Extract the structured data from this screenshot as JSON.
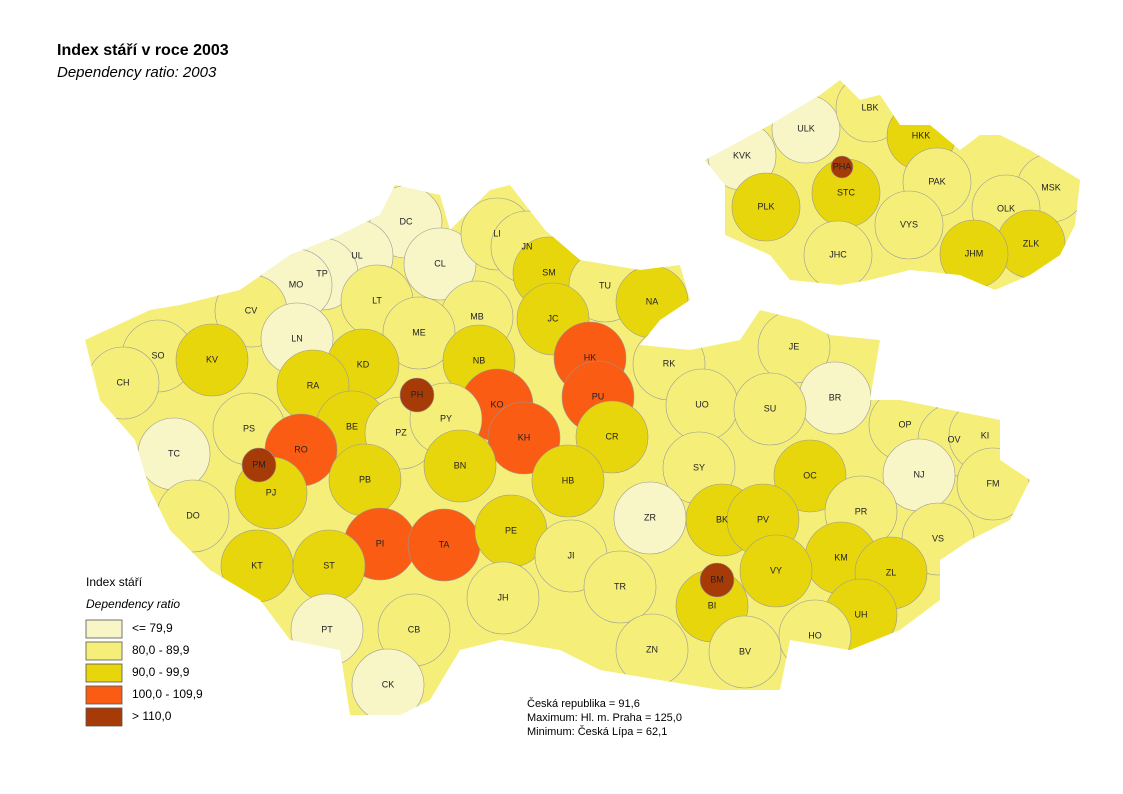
{
  "header": {
    "title": "Index stáří v roce 2003",
    "subtitle": "Dependency ratio: 2003"
  },
  "legend": {
    "title": "Index stáří",
    "subtitle": "Dependency ratio",
    "items": [
      {
        "label": "<= 79,9",
        "color": "#f8f5c6"
      },
      {
        "label": "80,0 - 89,9",
        "color": "#f5ef7a"
      },
      {
        "label": "90,0 - 99,9",
        "color": "#e8d60c"
      },
      {
        "label": "100,0 - 109,9",
        "color": "#f95c12"
      },
      {
        "label": "> 110,0",
        "color": "#a63b08"
      }
    ]
  },
  "districts": [
    {
      "label": "DC",
      "color": "#f8f5c6"
    },
    {
      "label": "UL",
      "color": "#f8f5c6"
    },
    {
      "label": "CL",
      "color": "#f8f5c6"
    },
    {
      "label": "LI",
      "color": "#f5ef7a"
    },
    {
      "label": "JN",
      "color": "#f5ef7a"
    },
    {
      "label": "SM",
      "color": "#e8d60c"
    },
    {
      "label": "TU",
      "color": "#f5ef7a"
    },
    {
      "label": "NA",
      "color": "#e8d60c"
    },
    {
      "label": "TP",
      "color": "#f8f5c6"
    },
    {
      "label": "MO",
      "color": "#f8f5c6"
    },
    {
      "label": "CV",
      "color": "#f5ef7a"
    },
    {
      "label": "LT",
      "color": "#f5ef7a"
    },
    {
      "label": "MB",
      "color": "#f5ef7a"
    },
    {
      "label": "JC",
      "color": "#e8d60c"
    },
    {
      "label": "SO",
      "color": "#f5ef7a"
    },
    {
      "label": "KV",
      "color": "#e8d60c"
    },
    {
      "label": "LN",
      "color": "#f8f5c6"
    },
    {
      "label": "ME",
      "color": "#f5ef7a"
    },
    {
      "label": "KD",
      "color": "#e8d60c"
    },
    {
      "label": "NB",
      "color": "#e8d60c"
    },
    {
      "label": "HK",
      "color": "#f95c12"
    },
    {
      "label": "RK",
      "color": "#f5ef7a"
    },
    {
      "label": "JE",
      "color": "#f5ef7a"
    },
    {
      "label": "CH",
      "color": "#f5ef7a"
    },
    {
      "label": "RA",
      "color": "#e8d60c"
    },
    {
      "label": "PH",
      "color": "#a63b08"
    },
    {
      "label": "KO",
      "color": "#f95c12"
    },
    {
      "label": "PU",
      "color": "#f95c12"
    },
    {
      "label": "UO",
      "color": "#f5ef7a"
    },
    {
      "label": "BR",
      "color": "#f8f5c6"
    },
    {
      "label": "SU",
      "color": "#f5ef7a"
    },
    {
      "label": "PS",
      "color": "#f5ef7a"
    },
    {
      "label": "BE",
      "color": "#e8d60c"
    },
    {
      "label": "PZ",
      "color": "#f5ef7a"
    },
    {
      "label": "PY",
      "color": "#f5ef7a"
    },
    {
      "label": "KH",
      "color": "#f95c12"
    },
    {
      "label": "CR",
      "color": "#e8d60c"
    },
    {
      "label": "OP",
      "color": "#f5ef7a"
    },
    {
      "label": "OV",
      "color": "#f5ef7a"
    },
    {
      "label": "KI",
      "color": "#f5ef7a"
    },
    {
      "label": "TC",
      "color": "#f8f5c6"
    },
    {
      "label": "RO",
      "color": "#f95c12"
    },
    {
      "label": "PM",
      "color": "#a63b08"
    },
    {
      "label": "BN",
      "color": "#e8d60c"
    },
    {
      "label": "SY",
      "color": "#f5ef7a"
    },
    {
      "label": "NJ",
      "color": "#f8f5c6"
    },
    {
      "label": "OC",
      "color": "#e8d60c"
    },
    {
      "label": "PJ",
      "color": "#e8d60c"
    },
    {
      "label": "PB",
      "color": "#e8d60c"
    },
    {
      "label": "HB",
      "color": "#e8d60c"
    },
    {
      "label": "FM",
      "color": "#f5ef7a"
    },
    {
      "label": "DO",
      "color": "#f5ef7a"
    },
    {
      "label": "PR",
      "color": "#f5ef7a"
    },
    {
      "label": "BK",
      "color": "#e8d60c"
    },
    {
      "label": "PV",
      "color": "#e8d60c"
    },
    {
      "label": "ZR",
      "color": "#f8f5c6"
    },
    {
      "label": "VS",
      "color": "#f5ef7a"
    },
    {
      "label": "PI",
      "color": "#f95c12"
    },
    {
      "label": "TA",
      "color": "#f95c12"
    },
    {
      "label": "PE",
      "color": "#e8d60c"
    },
    {
      "label": "JI",
      "color": "#f5ef7a"
    },
    {
      "label": "KM",
      "color": "#e8d60c"
    },
    {
      "label": "KT",
      "color": "#e8d60c"
    },
    {
      "label": "ST",
      "color": "#e8d60c"
    },
    {
      "label": "VY",
      "color": "#e8d60c"
    },
    {
      "label": "ZL",
      "color": "#e8d60c"
    },
    {
      "label": "BM",
      "color": "#a63b08"
    },
    {
      "label": "TR",
      "color": "#f5ef7a"
    },
    {
      "label": "BI",
      "color": "#e8d60c"
    },
    {
      "label": "UH",
      "color": "#e8d60c"
    },
    {
      "label": "JH",
      "color": "#f5ef7a"
    },
    {
      "label": "PT",
      "color": "#f8f5c6"
    },
    {
      "label": "CB",
      "color": "#f5ef7a"
    },
    {
      "label": "HO",
      "color": "#f5ef7a"
    },
    {
      "label": "ZN",
      "color": "#f5ef7a"
    },
    {
      "label": "BV",
      "color": "#f5ef7a"
    },
    {
      "label": "CK",
      "color": "#f8f5c6"
    }
  ],
  "regions": [
    {
      "label": "ULK",
      "color": "#f8f5c6"
    },
    {
      "label": "LBK",
      "color": "#f5ef7a"
    },
    {
      "label": "KVK",
      "color": "#f8f5c6"
    },
    {
      "label": "HKK",
      "color": "#e8d60c"
    },
    {
      "label": "PHA",
      "color": "#a63b08"
    },
    {
      "label": "STC",
      "color": "#e8d60c"
    },
    {
      "label": "PAK",
      "color": "#f5ef7a"
    },
    {
      "label": "MSK",
      "color": "#f5ef7a"
    },
    {
      "label": "PLK",
      "color": "#e8d60c"
    },
    {
      "label": "OLK",
      "color": "#f5ef7a"
    },
    {
      "label": "VYS",
      "color": "#f5ef7a"
    },
    {
      "label": "ZLK",
      "color": "#e8d60c"
    },
    {
      "label": "JHC",
      "color": "#f5ef7a"
    },
    {
      "label": "JHM",
      "color": "#e8d60c"
    }
  ],
  "stats": [
    "Česká republika =  91,6",
    "Maximum: Hl. m. Praha = 125,0",
    "Minimum: Česká Lípa  = 62,1"
  ]
}
